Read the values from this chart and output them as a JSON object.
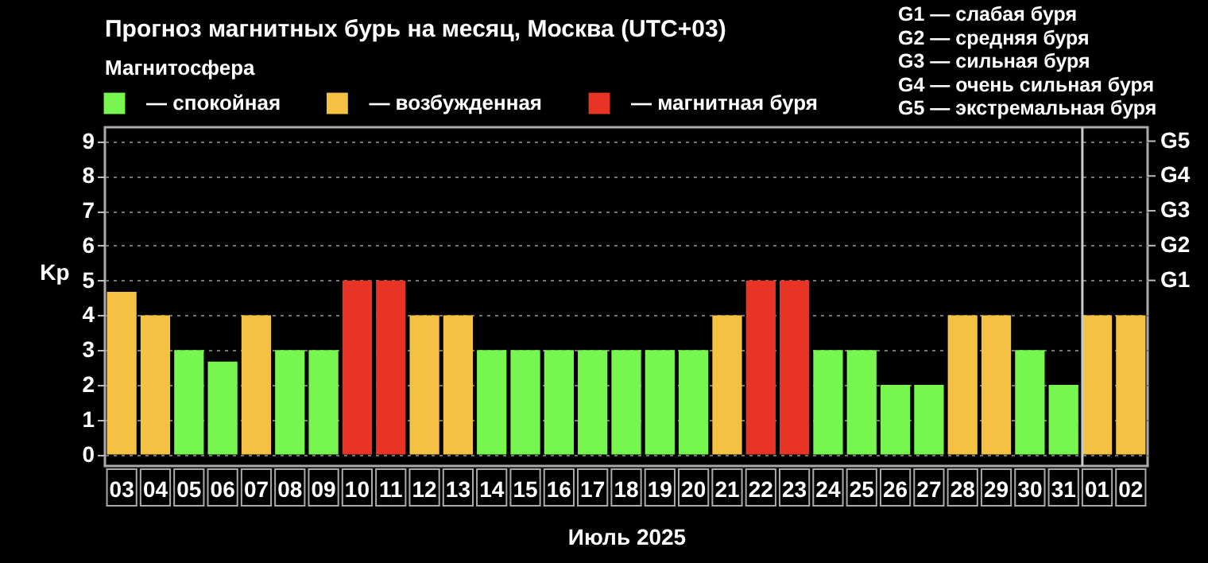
{
  "chart_data": {
    "type": "bar",
    "title": "Прогноз магнитных бурь на месяц, Москва (UTC+03)",
    "legend_title": "Магнитосфера",
    "legend": "top left",
    "xlabel": "Июль 2025",
    "ylabel": "Kp",
    "categories": [
      "03",
      "04",
      "05",
      "06",
      "07",
      "08",
      "09",
      "10",
      "11",
      "12",
      "13",
      "14",
      "15",
      "16",
      "17",
      "18",
      "19",
      "20",
      "21",
      "22",
      "23",
      "24",
      "25",
      "26",
      "27",
      "28",
      "29",
      "30",
      "31",
      "01",
      "02"
    ],
    "series": [
      {
        "name": "— спокойная",
        "color": "#76f64e",
        "values": [
          null,
          null,
          3,
          2.67,
          null,
          3,
          3,
          null,
          null,
          null,
          null,
          3,
          3,
          3,
          3,
          3,
          3,
          3,
          null,
          null,
          null,
          3,
          3,
          2,
          2,
          null,
          null,
          3,
          2,
          null,
          null
        ]
      },
      {
        "name": "— возбужденная",
        "color": "#f5c143",
        "values": [
          4.67,
          4,
          null,
          null,
          4,
          null,
          null,
          null,
          null,
          4,
          4,
          null,
          null,
          null,
          null,
          null,
          null,
          null,
          4,
          null,
          null,
          null,
          null,
          null,
          null,
          4,
          4,
          null,
          null,
          4,
          4
        ]
      },
      {
        "name": "— магнитная буря",
        "color": "#e83424",
        "values": [
          null,
          null,
          null,
          null,
          null,
          null,
          null,
          5,
          5,
          null,
          null,
          null,
          null,
          null,
          null,
          null,
          null,
          null,
          null,
          5,
          5,
          null,
          null,
          null,
          null,
          null,
          null,
          null,
          null,
          null,
          null
        ]
      }
    ],
    "ylim": [
      -0.33,
      9.4
    ],
    "yticks": [
      0,
      1,
      2,
      3,
      4,
      5,
      6,
      7,
      8,
      9
    ],
    "grid": "y",
    "ref_lines": [
      {
        "axis": "x",
        "value": "01",
        "color": "#cccccc"
      },
      {
        "axis": "y",
        "value": 5,
        "label": "G1"
      },
      {
        "axis": "y",
        "value": 6,
        "label": "G2"
      },
      {
        "axis": "y",
        "value": 7,
        "label": "G3"
      },
      {
        "axis": "y",
        "value": 8,
        "label": "G4"
      },
      {
        "axis": "y",
        "value": 9,
        "label": "G5"
      }
    ],
    "annotations": [
      "G1 — слабая буря",
      "G2 — средняя буря",
      "G3 — сильная буря",
      "G4 — очень сильная буря",
      "G5 — экстремальная буря"
    ]
  }
}
